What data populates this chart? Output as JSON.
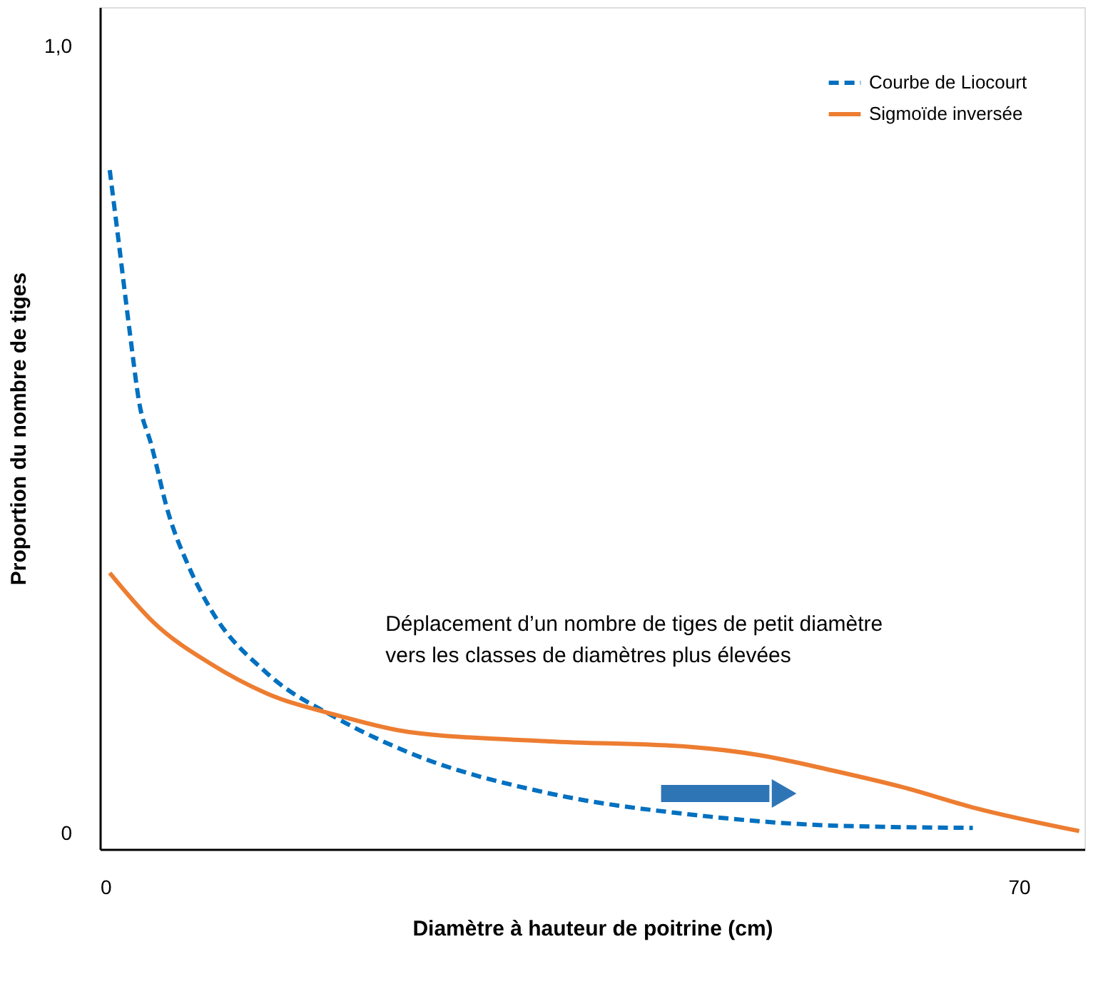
{
  "chart_data": {
    "type": "line",
    "xlabel": "Diamètre à hauteur de poitrine (cm)",
    "ylabel": "Proportion du nombre de tiges",
    "xlim": [
      0,
      75
    ],
    "ylim": [
      -0.02,
      1.05
    ],
    "xticks": [
      0,
      70
    ],
    "yticks": [
      0,
      {
        "value": 1,
        "label": "1,0"
      }
    ],
    "grid": false,
    "legend": "top right",
    "marker": "none",
    "series": [
      {
        "name": "Courbe de Liocourt",
        "color": "#0070c0",
        "line_style": "dashed",
        "x": [
          0.75,
          1.4,
          2.3,
          3,
          3.9,
          5.2,
          6.8,
          8.4,
          12.7,
          18.1,
          23.5,
          34.2,
          45,
          55.8,
          66.5
        ],
        "values": [
          0.843,
          0.756,
          0.634,
          0.547,
          0.495,
          0.408,
          0.338,
          0.286,
          0.204,
          0.146,
          0.103,
          0.051,
          0.024,
          0.01,
          0.007
        ]
      },
      {
        "name": "Sigmoïde inversée",
        "color": "#ed7d31",
        "line_style": "solid",
        "x": [
          0.75,
          4.1,
          8.4,
          12.7,
          18.1,
          23.5,
          34.2,
          45,
          50.4,
          55.8,
          61.1,
          66.5,
          74.6
        ],
        "values": [
          0.331,
          0.268,
          0.216,
          0.178,
          0.15,
          0.129,
          0.117,
          0.11,
          0.099,
          0.08,
          0.059,
          0.033,
          0.003
        ]
      }
    ],
    "annotations": [
      "Déplacement d’un nombre de tiges de petit diamètre\nvers les classes de diamètres plus élevées"
    ]
  }
}
